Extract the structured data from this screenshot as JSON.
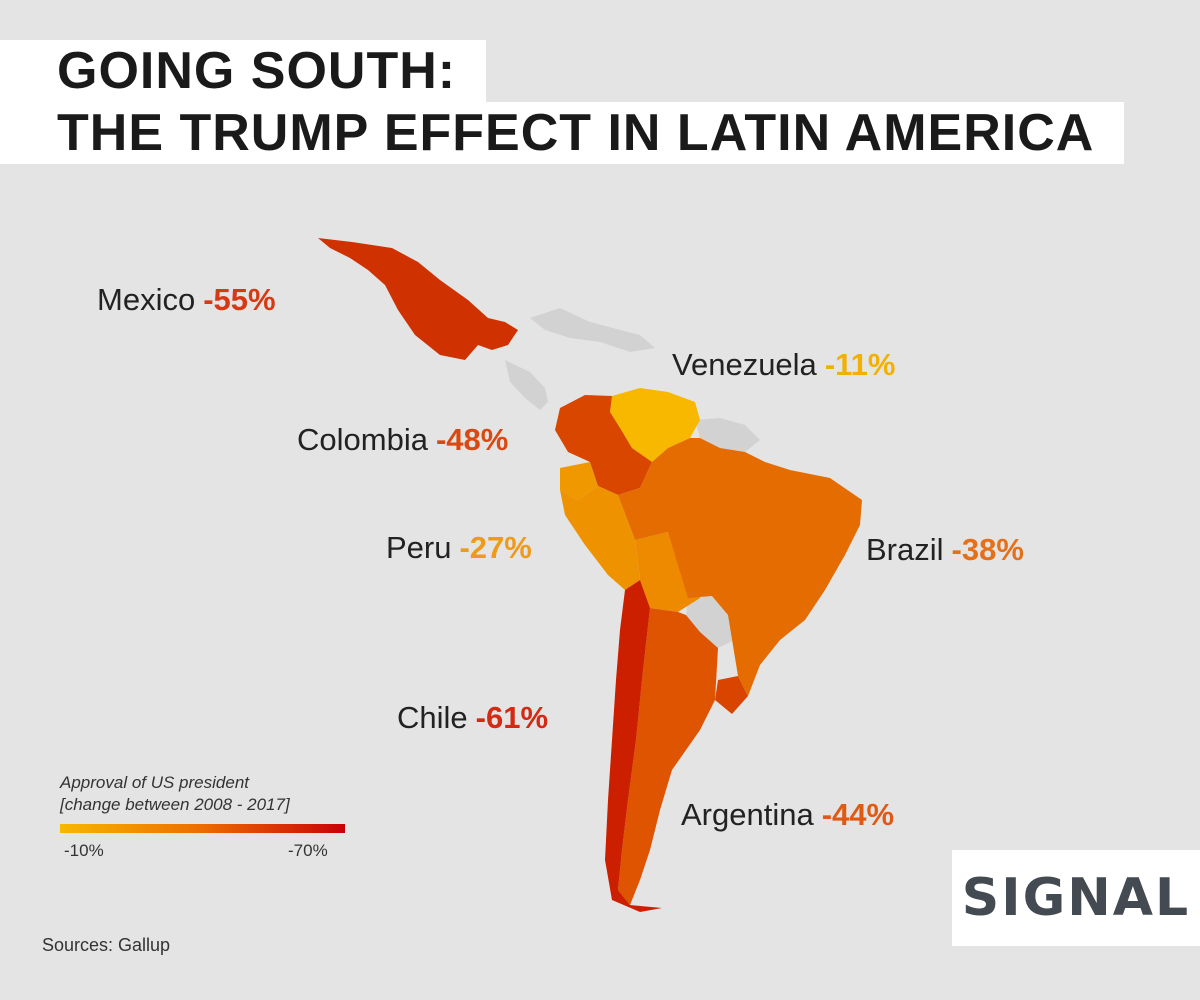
{
  "title": {
    "line1": "GOING SOUTH:",
    "line2": "THE TRUMP EFFECT IN LATIN AMERICA"
  },
  "countries": [
    {
      "name": "Mexico",
      "value": "-55%",
      "change": -55,
      "color": "#cf3200"
    },
    {
      "name": "Venezuela",
      "value": "-11%",
      "change": -11,
      "color": "#f8b800"
    },
    {
      "name": "Colombia",
      "value": "-48%",
      "change": -48,
      "color": "#d84600"
    },
    {
      "name": "Peru",
      "value": "-27%",
      "change": -27,
      "color": "#ee9200"
    },
    {
      "name": "Brazil",
      "value": "-38%",
      "change": -38,
      "color": "#e56c00"
    },
    {
      "name": "Chile",
      "value": "-61%",
      "change": -61,
      "color": "#cb1f00"
    },
    {
      "name": "Argentina",
      "value": "-44%",
      "change": -44,
      "color": "#df5400"
    }
  ],
  "legend": {
    "title_line1": "Approval of US president",
    "title_line2": "[change between 2008 - 2017]",
    "min_label": "-10%",
    "max_label": "-70%"
  },
  "sources": "Sources: Gallup",
  "logo": "SIGNAL",
  "colors": {
    "no_data": "#d2d2d2",
    "scale_low": "#f7b800",
    "scale_high": "#c8000a"
  }
}
